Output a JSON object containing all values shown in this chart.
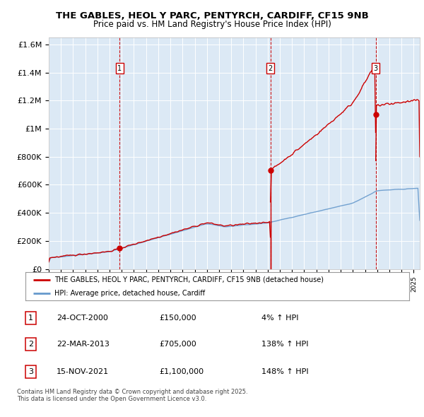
{
  "title_line1": "THE GABLES, HEOL Y PARC, PENTYRCH, CARDIFF, CF15 9NB",
  "title_line2": "Price paid vs. HM Land Registry's House Price Index (HPI)",
  "background_color": "#dce9f5",
  "plot_bg_color": "#dce9f5",
  "ylabel_ticks": [
    "£0",
    "£200K",
    "£400K",
    "£600K",
    "£800K",
    "£1M",
    "£1.2M",
    "£1.4M",
    "£1.6M"
  ],
  "ytick_values": [
    0,
    200000,
    400000,
    600000,
    800000,
    1000000,
    1200000,
    1400000,
    1600000
  ],
  "xmin": 1995,
  "xmax": 2025,
  "ymin": 0,
  "ymax": 1650000,
  "purchase_dates": [
    2000.81,
    2013.23,
    2021.88
  ],
  "purchase_prices": [
    150000,
    705000,
    1100000
  ],
  "purchase_labels": [
    "1",
    "2",
    "3"
  ],
  "legend_entries": [
    "THE GABLES, HEOL Y PARC, PENTYRCH, CARDIFF, CF15 9NB (detached house)",
    "HPI: Average price, detached house, Cardiff"
  ],
  "table_data": [
    [
      "1",
      "24-OCT-2000",
      "£150,000",
      "4% ↑ HPI"
    ],
    [
      "2",
      "22-MAR-2013",
      "£705,000",
      "138% ↑ HPI"
    ],
    [
      "3",
      "15-NOV-2021",
      "£1,100,000",
      "148% ↑ HPI"
    ]
  ],
  "footer": "Contains HM Land Registry data © Crown copyright and database right 2025.\nThis data is licensed under the Open Government Licence v3.0.",
  "hpi_color": "#6699cc",
  "house_color": "#cc0000",
  "vline_color": "#cc0000",
  "grid_color": "#ffffff"
}
